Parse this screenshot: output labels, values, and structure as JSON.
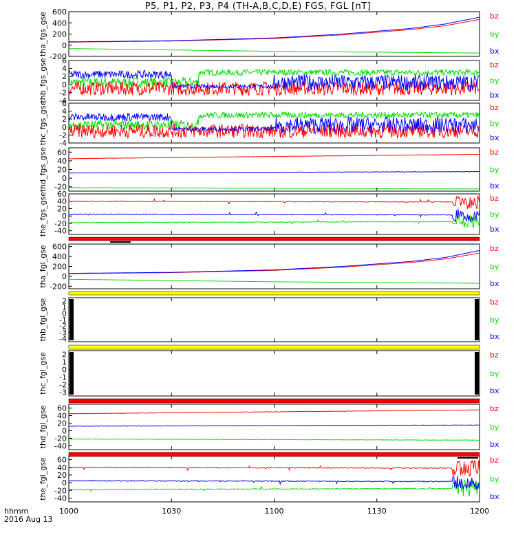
{
  "title": "P5, P1, P2, P3, P4 (TH-A,B,C,D,E) FGS, FGL [nT]",
  "time_label": "hhmm",
  "date_label": "2016 Aug 13",
  "colors": {
    "bx": "#0000ff",
    "by": "#00dd00",
    "bz": "#ff0000",
    "bar_red": "#ff0000",
    "bar_yellow": "#ffff00",
    "bar_black": "#000000"
  },
  "chart_data": {
    "type": "line",
    "x_ticks": [
      "1000",
      "1030",
      "1100",
      "1130",
      "1200"
    ],
    "x_range_hhmm": [
      "1000",
      "1200"
    ],
    "components": [
      "bz",
      "by",
      "bx"
    ],
    "panels": [
      {
        "ylabel": "tha_fgs_gse",
        "yticks": [
          "600",
          "400",
          "200",
          "0",
          "-200"
        ],
        "ylim": [
          -200,
          600
        ],
        "data_type": "curve",
        "series": [
          {
            "name": "bx",
            "x": [
              0,
              30,
              60,
              80,
              100,
              110,
              120
            ],
            "y": [
              60,
              80,
              130,
              200,
              300,
              380,
              500
            ]
          },
          {
            "name": "by",
            "x": [
              0,
              60,
              120
            ],
            "y": [
              -60,
              -110,
              -140
            ]
          },
          {
            "name": "bz",
            "x": [
              0,
              30,
              60,
              80,
              100,
              110,
              120
            ],
            "y": [
              55,
              75,
              120,
              185,
              280,
              350,
              460
            ]
          }
        ]
      },
      {
        "ylabel": "thb_fgs_gse",
        "yticks": [
          "6",
          "4",
          "2",
          "0",
          "-2",
          "-4"
        ],
        "ylim": [
          -4,
          6
        ],
        "data_type": "noisy"
      },
      {
        "ylabel": "thc_fgs_gse",
        "yticks": [
          "6",
          "4",
          "2",
          "0",
          "-2",
          "-4"
        ],
        "ylim": [
          -4,
          6
        ],
        "data_type": "noisy"
      },
      {
        "ylabel": "thd_fgs_gse",
        "yticks": [
          "60",
          "40",
          "20",
          "0",
          "-20"
        ],
        "ylim": [
          -30,
          70
        ],
        "data_type": "steady",
        "series": [
          {
            "name": "bx",
            "x": [
              0,
              120
            ],
            "y": [
              12,
              15
            ]
          },
          {
            "name": "by",
            "x": [
              0,
              120
            ],
            "y": [
              -22,
              -25
            ]
          },
          {
            "name": "bz",
            "x": [
              0,
              120
            ],
            "y": [
              45,
              55
            ]
          }
        ]
      },
      {
        "ylabel": "the_fgs_gse",
        "yticks": [
          "60",
          "40",
          "20",
          "0",
          "-20",
          "-40"
        ],
        "ylim": [
          -50,
          60
        ],
        "data_type": "steady-spiky",
        "series": [
          {
            "name": "bx",
            "x": [
              0,
              120
            ],
            "y": [
              5,
              3
            ]
          },
          {
            "name": "by",
            "x": [
              0,
              120
            ],
            "y": [
              -18,
              -15
            ]
          },
          {
            "name": "bz",
            "x": [
              0,
              120
            ],
            "y": [
              40,
              38
            ]
          }
        ]
      },
      {
        "ylabel": "tha_fgl_gse",
        "yticks": [
          "600",
          "400",
          "200",
          "0",
          "-200"
        ],
        "ylim": [
          -250,
          650
        ],
        "data_type": "curve",
        "series": [
          {
            "name": "bx",
            "x": [
              0,
              30,
              60,
              80,
              100,
              110,
              120
            ],
            "y": [
              60,
              80,
              130,
              200,
              300,
              380,
              520
            ]
          },
          {
            "name": "by",
            "x": [
              0,
              60,
              120
            ],
            "y": [
              -60,
              -110,
              -140
            ]
          },
          {
            "name": "bz",
            "x": [
              0,
              30,
              60,
              80,
              100,
              110,
              120
            ],
            "y": [
              55,
              75,
              120,
              185,
              280,
              350,
              470
            ]
          }
        ]
      },
      {
        "ylabel": "thb_fgl_gse",
        "yticks": [
          "2",
          "1",
          "0",
          "-1",
          "-2",
          "-3",
          "-4"
        ],
        "ylim": [
          -4.5,
          2.5
        ],
        "data_type": "empty"
      },
      {
        "ylabel": "thc_fgl_gse",
        "yticks": [
          "2",
          "1",
          "0",
          "-1",
          "-2",
          "-3"
        ],
        "ylim": [
          -3.5,
          2.5
        ],
        "data_type": "empty"
      },
      {
        "ylabel": "thd_fgl_gse",
        "yticks": [
          "60",
          "40",
          "20",
          "0",
          "-20",
          "-40"
        ],
        "ylim": [
          -50,
          70
        ],
        "data_type": "steady",
        "series": [
          {
            "name": "bx",
            "x": [
              0,
              120
            ],
            "y": [
              12,
              15
            ]
          },
          {
            "name": "by",
            "x": [
              0,
              120
            ],
            "y": [
              -22,
              -25
            ]
          },
          {
            "name": "bz",
            "x": [
              0,
              120
            ],
            "y": [
              45,
              55
            ]
          }
        ]
      },
      {
        "ylabel": "the_fgl_gse",
        "yticks": [
          "60",
          "40",
          "20",
          "0",
          "-20",
          "-40"
        ],
        "ylim": [
          -50,
          70
        ],
        "data_type": "steady-spiky",
        "series": [
          {
            "name": "bx",
            "x": [
              0,
              120
            ],
            "y": [
              5,
              3
            ]
          },
          {
            "name": "by",
            "x": [
              0,
              120
            ],
            "y": [
              -18,
              -15
            ]
          },
          {
            "name": "bz",
            "x": [
              0,
              120
            ],
            "y": [
              40,
              38
            ]
          }
        ]
      }
    ],
    "status_bars": [
      "red",
      "yellow",
      "yellow",
      "red",
      "red"
    ]
  }
}
